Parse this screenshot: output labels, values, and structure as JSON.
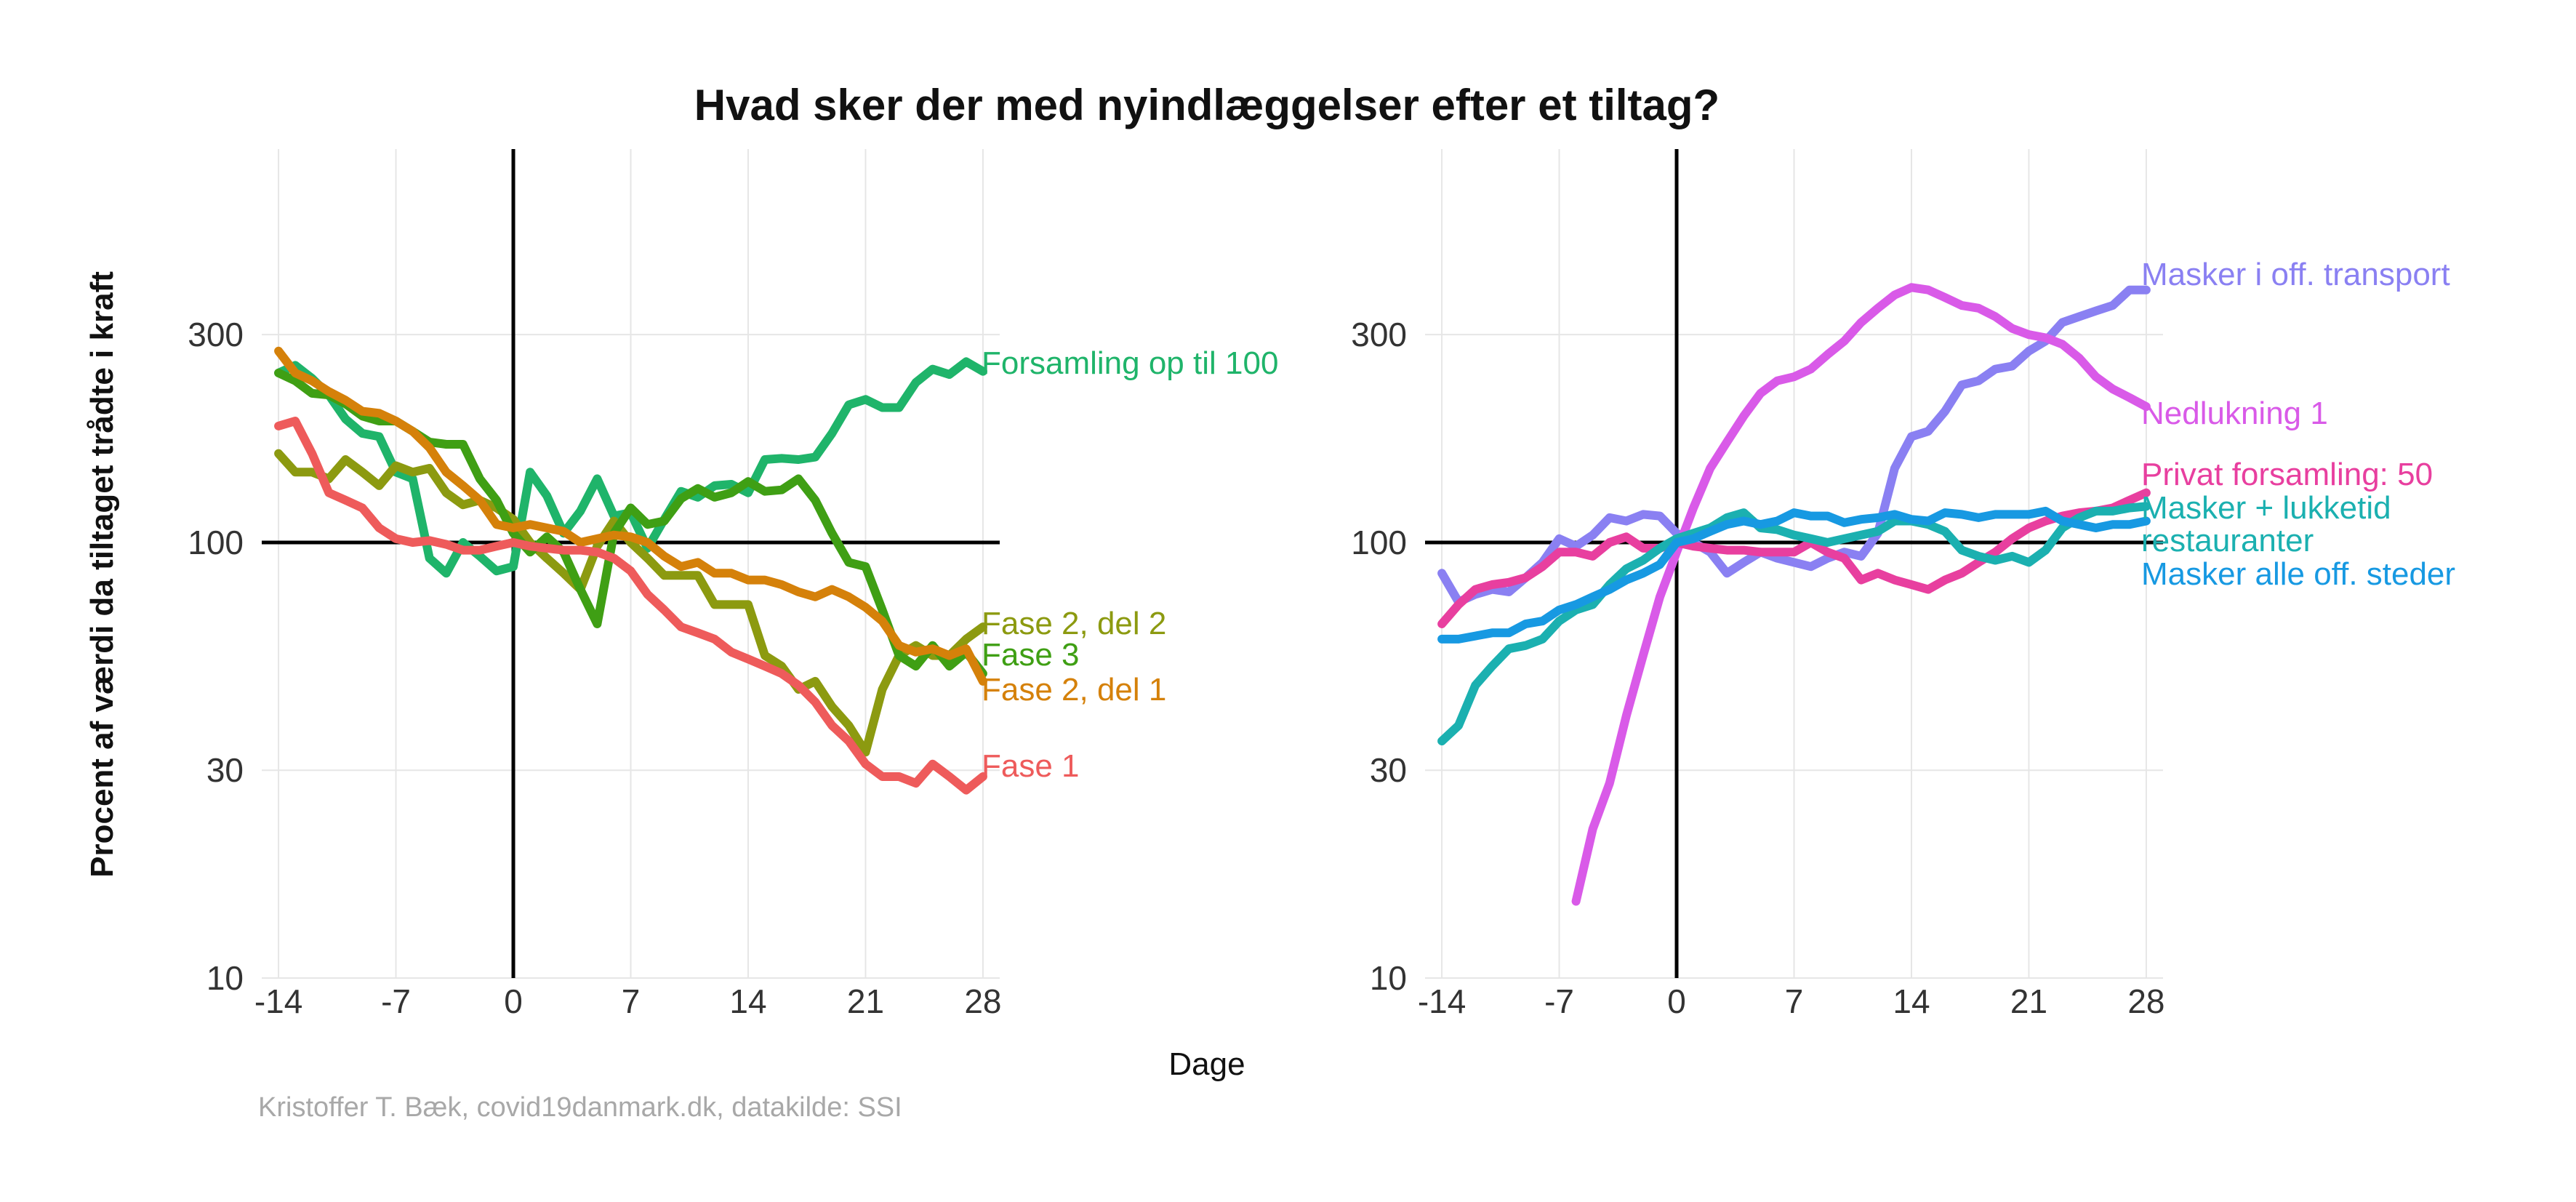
{
  "title": "Hvad sker der med nyindlæggelser efter et tiltag?",
  "ylabel": "Procent af værdi da tiltaget trådte i kraft",
  "xlabel": "Dage",
  "caption": "Kristoffer T. Bæk, covid19danmark.dk, datakilde: SSI",
  "chart_data": [
    {
      "type": "line",
      "x_ticks": [
        -14,
        -7,
        0,
        7,
        14,
        21,
        28
      ],
      "y_ticks": [
        10,
        30,
        100,
        300
      ],
      "y_scale": "log",
      "xlim": [
        -15,
        29
      ],
      "ylim": [
        10,
        800
      ],
      "reference_lines": {
        "x": 0,
        "y": 100
      },
      "x": [
        -14,
        -13,
        -12,
        -11,
        -10,
        -9,
        -8,
        -7,
        -6,
        -5,
        -4,
        -3,
        -2,
        -1,
        0,
        1,
        2,
        3,
        4,
        5,
        6,
        7,
        8,
        9,
        10,
        11,
        12,
        13,
        14,
        15,
        16,
        17,
        18,
        19,
        20,
        21,
        22,
        23,
        24,
        25,
        26,
        27,
        28
      ],
      "series": [
        {
          "name": "Forsamling op til 100",
          "color": "#1fb46a",
          "values": [
            245,
            255,
            238,
            218,
            192,
            178,
            175,
            145,
            140,
            92,
            85,
            100,
            93,
            86,
            88,
            145,
            128,
            105,
            118,
            140,
            115,
            117,
            97,
            113,
            131,
            127,
            135,
            136,
            130,
            155,
            156,
            155,
            157,
            178,
            207,
            213,
            204,
            204,
            233,
            250,
            243,
            260,
            247
          ]
        },
        {
          "name": "Fase 2, del 2",
          "color": "#8c9a10",
          "values": [
            160,
            145,
            145,
            140,
            155,
            145,
            135,
            150,
            145,
            148,
            130,
            122,
            125,
            120,
            113,
            100,
            92,
            85,
            78,
            98,
            112,
            100,
            92,
            84,
            84,
            84,
            72,
            72,
            72,
            55,
            52,
            46,
            48,
            42,
            38,
            33,
            46,
            55,
            58,
            55,
            55,
            60,
            64
          ]
        },
        {
          "name": "Fase 3",
          "color": "#3f9f14",
          "values": [
            245,
            235,
            220,
            218,
            208,
            195,
            190,
            190,
            180,
            170,
            168,
            168,
            140,
            125,
            105,
            95,
            103,
            95,
            78,
            65,
            105,
            120,
            110,
            112,
            126,
            133,
            127,
            130,
            138,
            131,
            132,
            140,
            125,
            105,
            90,
            88,
            70,
            55,
            52,
            58,
            52,
            56,
            50
          ]
        },
        {
          "name": "Fase 2, del 1",
          "color": "#d5810a",
          "values": [
            275,
            245,
            235,
            222,
            212,
            200,
            198,
            190,
            180,
            165,
            145,
            135,
            125,
            110,
            108,
            110,
            108,
            106,
            100,
            102,
            104,
            103,
            100,
            93,
            88,
            90,
            85,
            85,
            82,
            82,
            80,
            77,
            75,
            78,
            75,
            71,
            66,
            58,
            56,
            57,
            55,
            57,
            48
          ]
        },
        {
          "name": "Fase 1",
          "color": "#ee5b5b",
          "values": [
            185,
            190,
            160,
            130,
            125,
            120,
            108,
            102,
            100,
            101,
            99,
            96,
            96,
            98,
            100,
            98,
            97,
            96,
            96,
            95,
            92,
            86,
            76,
            70,
            64,
            62,
            60,
            56,
            54,
            52,
            50,
            47,
            43,
            38,
            35,
            31,
            29,
            29,
            28,
            31,
            29,
            27,
            29
          ]
        },
        {
          "name": "Masker i off. transport",
          "color": "#8a80f2",
          "values": [
            85,
            73,
            76,
            78,
            77,
            83,
            90,
            102,
            98,
            104,
            114,
            112,
            116,
            115,
            105,
            100,
            95,
            85,
            90,
            95,
            92,
            90,
            88,
            92,
            95,
            93,
            105,
            148,
            175,
            180,
            200,
            230,
            235,
            250,
            254,
            275,
            290,
            320,
            330,
            340,
            350,
            380,
            380
          ]
        },
        {
          "name": "Nedlukning 1",
          "color": "#d95ae8",
          "values": [
            null,
            null,
            null,
            null,
            null,
            null,
            null,
            null,
            15,
            22,
            28,
            40,
            55,
            75,
            95,
            120,
            148,
            170,
            195,
            220,
            235,
            240,
            250,
            270,
            290,
            320,
            345,
            370,
            385,
            380,
            365,
            350,
            345,
            330,
            310,
            300,
            295,
            285,
            265,
            240,
            225,
            215,
            205
          ]
        },
        {
          "name": "Privat forsamling: 50",
          "color": "#e83f9f",
          "values": [
            65,
            72,
            78,
            80,
            81,
            83,
            88,
            95,
            95,
            93,
            100,
            103,
            97,
            97,
            100,
            98,
            97,
            96,
            96,
            95,
            95,
            95,
            100,
            95,
            92,
            82,
            85,
            82,
            80,
            78,
            82,
            85,
            90,
            95,
            102,
            108,
            112,
            115,
            117,
            118,
            120,
            125,
            130
          ]
        },
        {
          "name": "Masker + lukketid restauranter",
          "color": "#1bb0b0",
          "values": [
            35,
            38,
            47,
            52,
            57,
            58,
            60,
            66,
            70,
            72,
            80,
            87,
            91,
            97,
            102,
            105,
            108,
            114,
            117,
            108,
            107,
            104,
            102,
            100,
            102,
            104,
            106,
            112,
            112,
            110,
            106,
            96,
            93,
            91,
            93,
            90,
            96,
            108,
            114,
            118,
            118,
            120,
            121
          ]
        },
        {
          "name": "Masker alle off. steder",
          "color": "#1799e2",
          "values": [
            60,
            60,
            61,
            62,
            62,
            65,
            66,
            70,
            72,
            75,
            78,
            82,
            85,
            89,
            100,
            102,
            106,
            110,
            112,
            110,
            112,
            117,
            115,
            115,
            111,
            113,
            114,
            116,
            113,
            112,
            117,
            116,
            114,
            116,
            116,
            116,
            118,
            112,
            110,
            108,
            110,
            110,
            112
          ]
        }
      ],
      "panels": [
        {
          "series": [
            "Forsamling op til 100",
            "Fase 2, del 2",
            "Fase 3",
            "Fase 2, del 1",
            "Fase 1"
          ],
          "labels": [
            {
              "text": "Forsamling op til 100",
              "color": "#1fb46a"
            },
            {
              "text": "Fase 2, del 2",
              "color": "#8c9a10"
            },
            {
              "text": "Fase 3",
              "color": "#3f9f14"
            },
            {
              "text": "Fase 2, del 1",
              "color": "#d5810a"
            },
            {
              "text": "Fase 1",
              "color": "#ee5b5b"
            }
          ]
        },
        {
          "series": [
            "Masker i off. transport",
            "Nedlukning 1",
            "Privat forsamling: 50",
            "Masker + lukketid restauranter",
            "Masker alle off. steder"
          ],
          "labels": [
            {
              "text": "Masker i off. transport",
              "color": "#8a80f2"
            },
            {
              "text": "Nedlukning 1",
              "color": "#d95ae8"
            },
            {
              "text": "Privat forsamling: 50",
              "color": "#e83f9f"
            },
            {
              "text": "Masker + lukketid",
              "color": "#1bb0b0"
            },
            {
              "text": "restauranter",
              "color": "#1bb0b0"
            },
            {
              "text": "Masker alle off. steder",
              "color": "#1799e2"
            }
          ]
        }
      ]
    }
  ]
}
